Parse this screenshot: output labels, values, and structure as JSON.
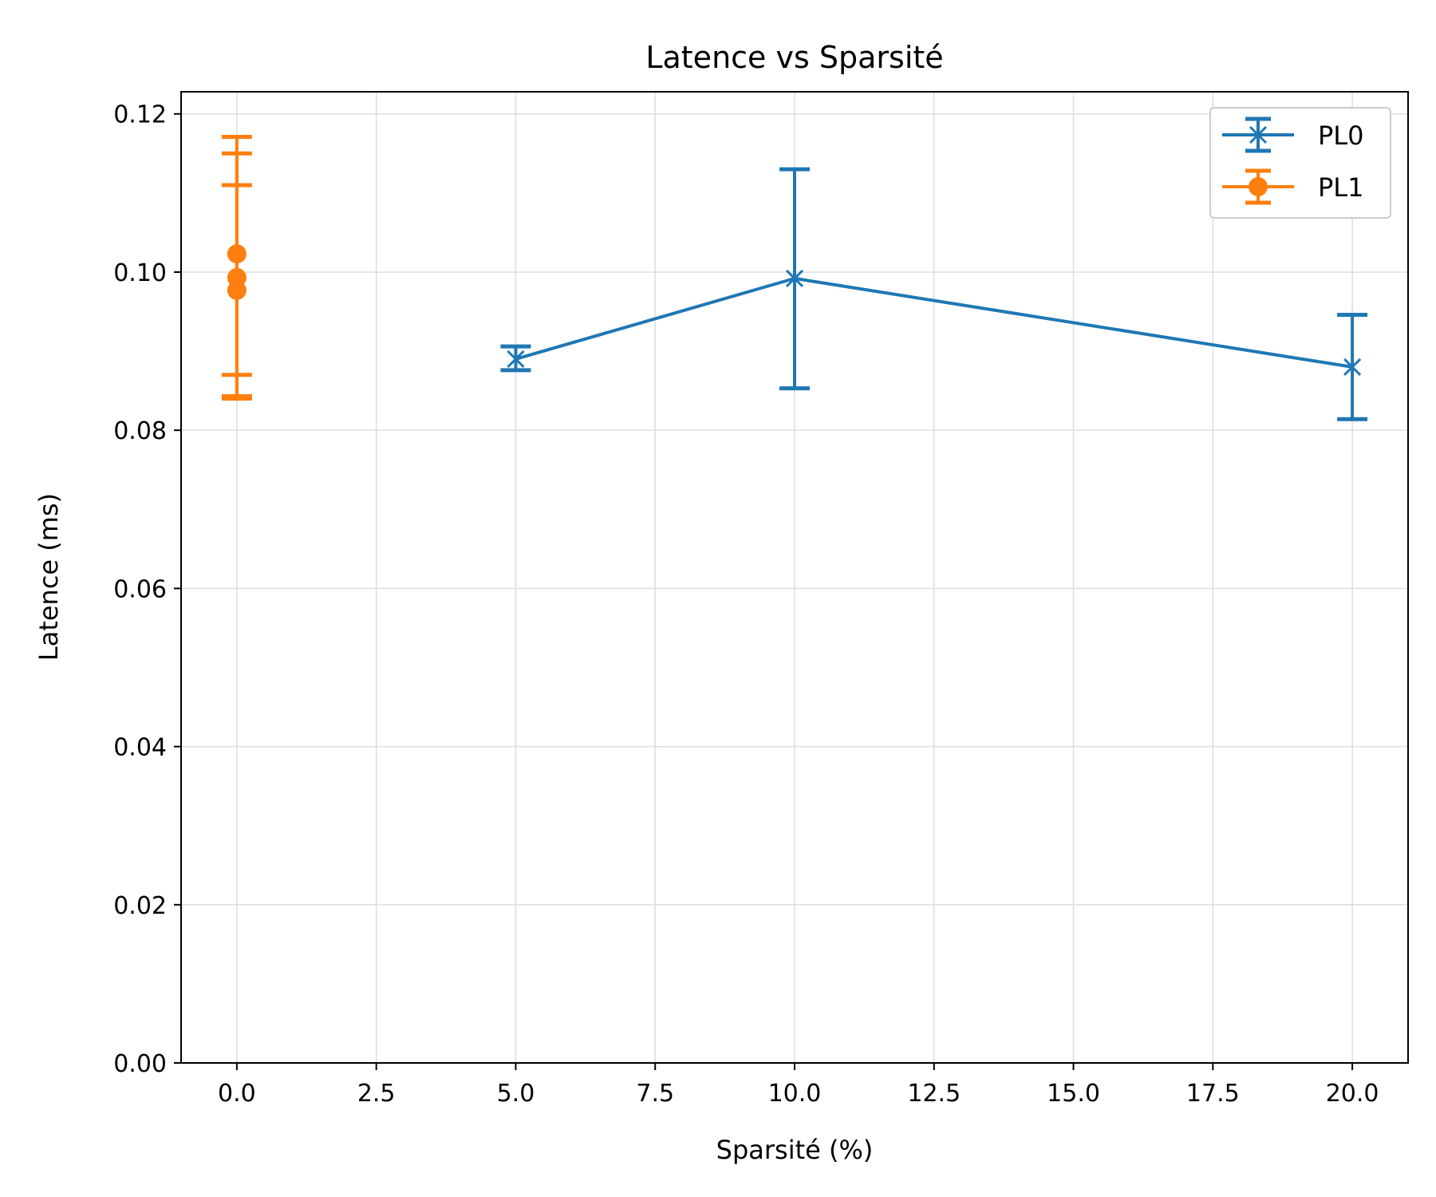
{
  "chart_data": {
    "type": "line",
    "title": "Latence vs Sparsité",
    "xlabel": "Sparsité (%)",
    "ylabel": "Latence (ms)",
    "xlim": [
      -1.0,
      21.0
    ],
    "ylim": [
      0.0,
      0.1228
    ],
    "xticks": [
      "0.0",
      "2.5",
      "5.0",
      "7.5",
      "10.0",
      "12.5",
      "15.0",
      "17.5",
      "20.0"
    ],
    "yticks": [
      "0.00",
      "0.02",
      "0.04",
      "0.06",
      "0.08",
      "0.10",
      "0.12"
    ],
    "grid": true,
    "legend_position": "top-right",
    "series": [
      {
        "name": "PL0",
        "color": "#1f77b4",
        "marker": "x",
        "line": true,
        "points": [
          {
            "x": 5.0,
            "y": 0.089,
            "err_low": 0.0876,
            "err_high": 0.0906
          },
          {
            "x": 10.0,
            "y": 0.0992,
            "err_low": 0.0853,
            "err_high": 0.113
          },
          {
            "x": 20.0,
            "y": 0.088,
            "err_low": 0.0814,
            "err_high": 0.0946
          }
        ]
      },
      {
        "name": "PL1",
        "color": "#ff7f0e",
        "marker": "o",
        "line": true,
        "points": [
          {
            "x": 0.0,
            "y": 0.1023,
            "err_low": 0.0843,
            "err_high": 0.1171
          },
          {
            "x": 0.0,
            "y": 0.0993,
            "err_low": 0.087,
            "err_high": 0.115
          },
          {
            "x": 0.0,
            "y": 0.0977,
            "err_low": 0.084,
            "err_high": 0.111
          }
        ]
      }
    ]
  }
}
